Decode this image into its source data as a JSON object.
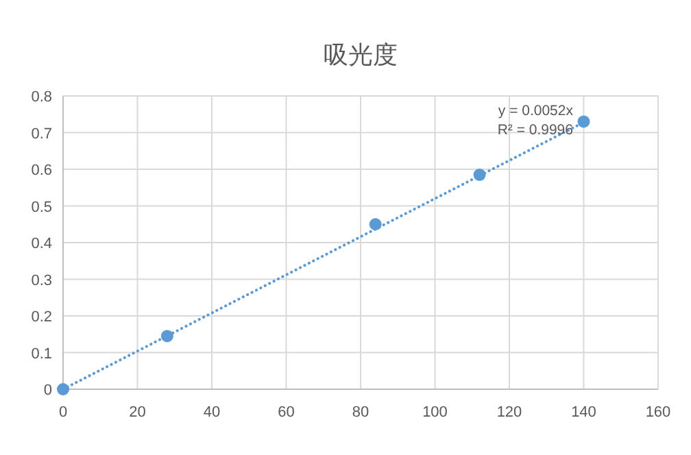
{
  "chart_data": {
    "type": "scatter",
    "title": "吸光度",
    "series": [
      {
        "type": "scatter",
        "color": "#5b9bd5",
        "x": [
          0,
          28,
          84,
          112,
          140
        ],
        "values": [
          0,
          0.145,
          0.45,
          0.585,
          0.73
        ],
        "marker": "circle"
      },
      {
        "type": "line",
        "color": "#5b9bd5",
        "x": [
          0,
          140
        ],
        "values": [
          0,
          0.728
        ],
        "line_style": "dotted",
        "marker": "none"
      }
    ],
    "annotations": [
      "y = 0.0052x",
      "R² = 0.9996"
    ],
    "xlim": [
      0,
      160
    ],
    "xticks": [
      0,
      20,
      40,
      60,
      80,
      100,
      120,
      140,
      160
    ],
    "ylim": [
      0,
      0.8
    ],
    "yticks": [
      0,
      0.1,
      0.2,
      0.3,
      0.4,
      0.5,
      0.6,
      0.7,
      0.8
    ],
    "grid": true
  }
}
